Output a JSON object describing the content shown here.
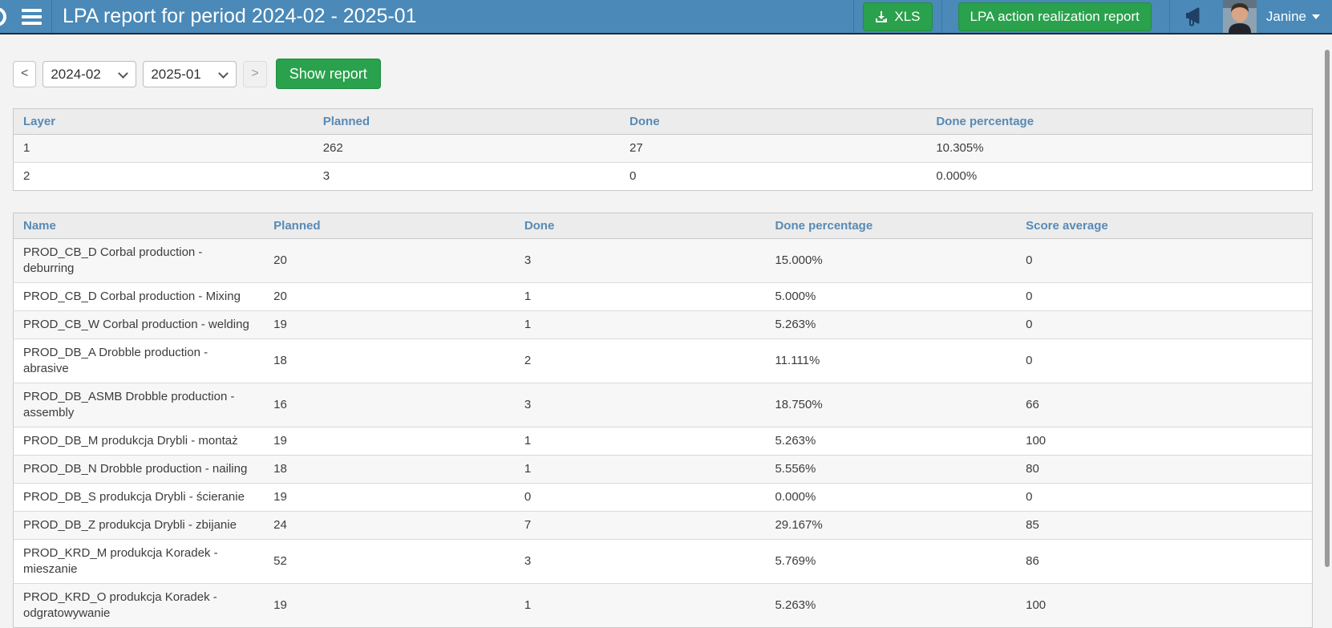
{
  "navbar": {
    "title": "LPA report for period 2024-02 - 2025-01",
    "xls_button_label": "XLS",
    "action_report_button_label": "LPA action realization report",
    "user_name": "Janine"
  },
  "controls": {
    "prev_label": "<",
    "next_label": ">",
    "period_from": "2024-02",
    "period_to": "2025-01",
    "show_report_label": "Show report"
  },
  "layer_table": {
    "headers": [
      "Layer",
      "Planned",
      "Done",
      "Done percentage"
    ],
    "rows": [
      [
        "1",
        "262",
        "27",
        "10.305%"
      ],
      [
        "2",
        "3",
        "0",
        "0.000%"
      ]
    ]
  },
  "name_table": {
    "headers": [
      "Name",
      "Planned",
      "Done",
      "Done percentage",
      "Score average"
    ],
    "rows": [
      [
        "PROD_CB_D Corbal production - deburring",
        "20",
        "3",
        "15.000%",
        "0"
      ],
      [
        "PROD_CB_D Corbal production - Mixing",
        "20",
        "1",
        "5.000%",
        "0"
      ],
      [
        "PROD_CB_W Corbal production - welding",
        "19",
        "1",
        "5.263%",
        "0"
      ],
      [
        "PROD_DB_A Drobble production - abrasive",
        "18",
        "2",
        "11.111%",
        "0"
      ],
      [
        "PROD_DB_ASMB Drobble production - assembly",
        "16",
        "3",
        "18.750%",
        "66"
      ],
      [
        "PROD_DB_M produkcja Drybli - montaż",
        "19",
        "1",
        "5.263%",
        "100"
      ],
      [
        "PROD_DB_N Drobble production - nailing",
        "18",
        "1",
        "5.556%",
        "80"
      ],
      [
        "PROD_DB_S produkcja Drybli - ścieranie",
        "19",
        "0",
        "0.000%",
        "0"
      ],
      [
        "PROD_DB_Z produkcja Drybli - zbijanie",
        "24",
        "7",
        "29.167%",
        "85"
      ],
      [
        "PROD_KRD_M produkcja Koradek - mieszanie",
        "52",
        "3",
        "5.769%",
        "86"
      ],
      [
        "PROD_KRD_O produkcja Koradek - odgratowywanie",
        "19",
        "1",
        "5.263%",
        "100"
      ]
    ]
  },
  "icons": {
    "menu": "hamburger-icon",
    "xls_download": "download-icon",
    "announcements": "megaphone-icon",
    "user_menu": "caret-down-icon",
    "period_selects": "chevron-down-icon"
  },
  "colors": {
    "navbar_bg": "#4a89b8",
    "navbar_border_bottom": "#1d2b36",
    "button_green": "#2aa14c",
    "table_header_text": "#578ab5",
    "page_bg": "#f2f3f2"
  }
}
